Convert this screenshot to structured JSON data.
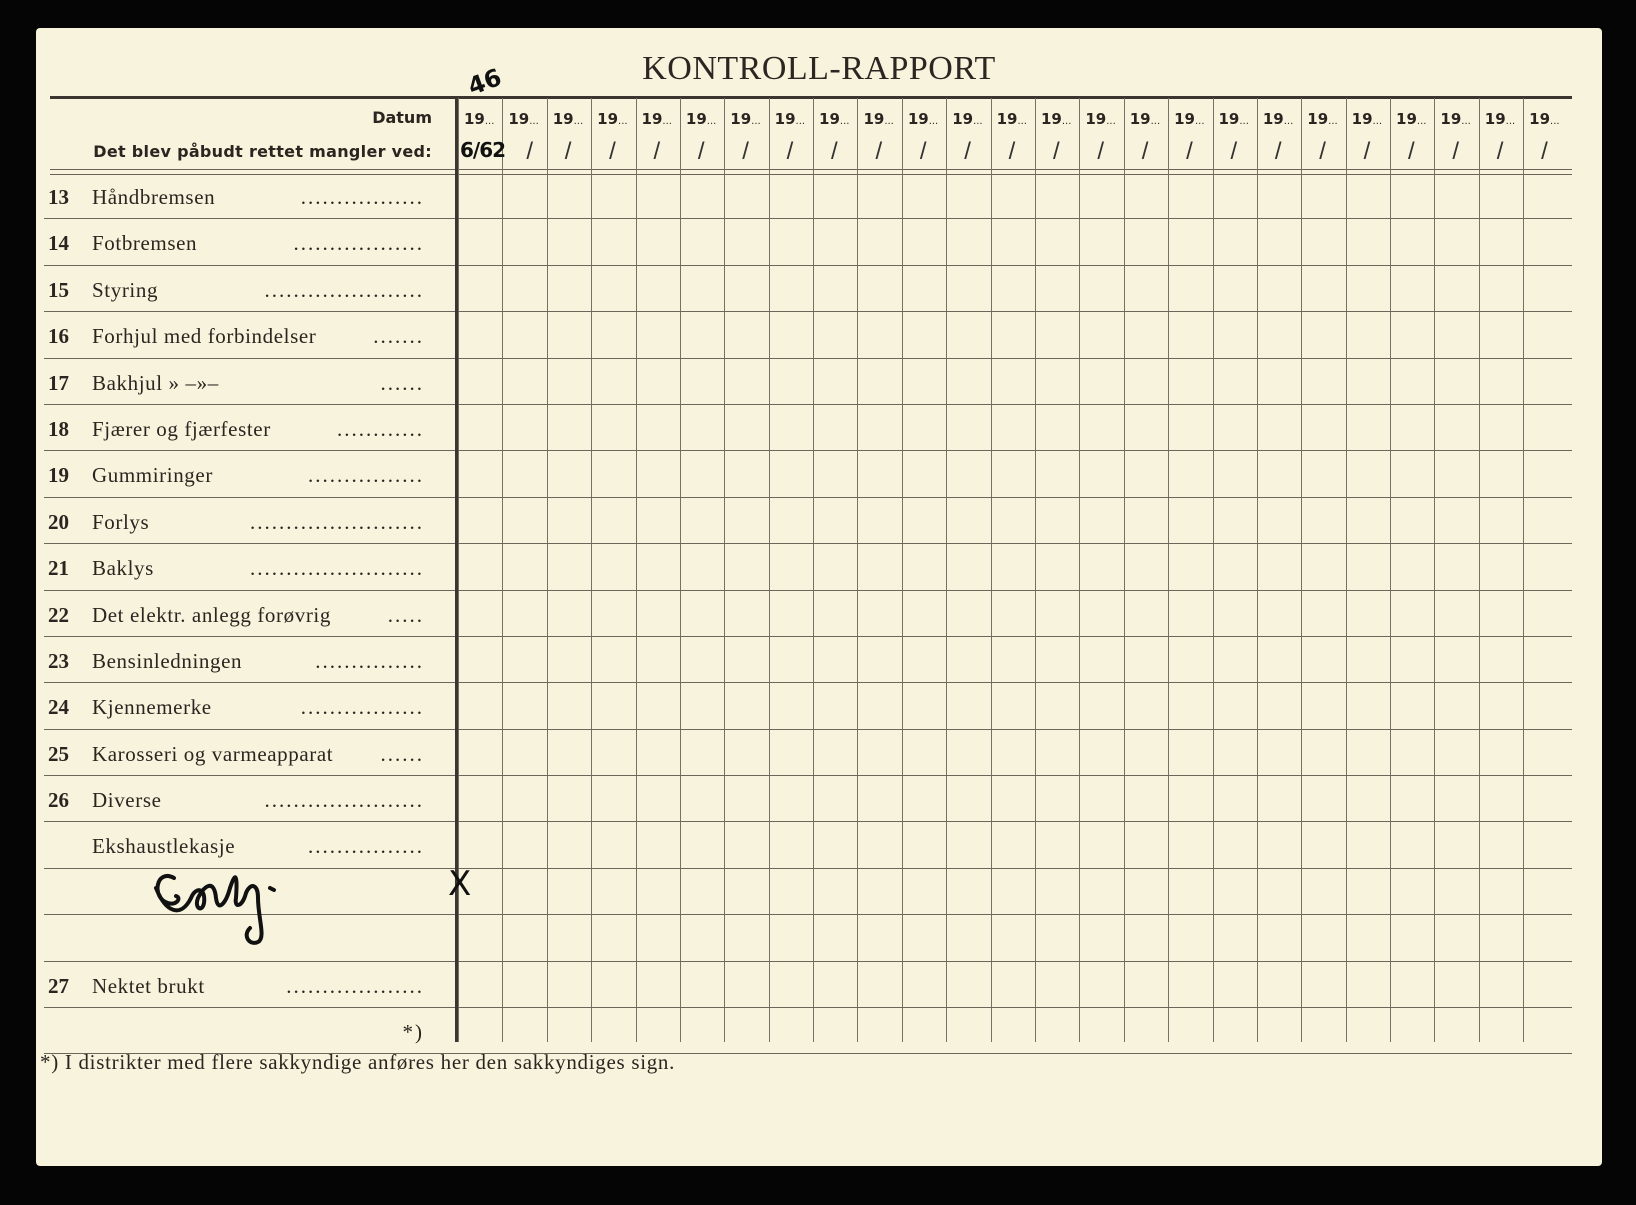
{
  "title": "KONTROLL-RAPPORT",
  "header": {
    "datum_label": "Datum",
    "mangler_label": "Det blev påbudt rettet mangler ved:",
    "year_prefix": "19",
    "column_count": 25
  },
  "rows": [
    {
      "num": "13",
      "label": "Håndbremsen",
      "dots": "................."
    },
    {
      "num": "14",
      "label": "Fotbremsen",
      "dots": ".................."
    },
    {
      "num": "15",
      "label": "Styring",
      "dots": "......................"
    },
    {
      "num": "16",
      "label": "Forhjul med forbindelser",
      "dots": "......."
    },
    {
      "num": "17",
      "label": "Bakhjul  »          –»–",
      "dots": "......"
    },
    {
      "num": "18",
      "label": "Fjærer og fjærfester",
      "dots": "............"
    },
    {
      "num": "19",
      "label": "Gummiringer",
      "dots": "................"
    },
    {
      "num": "20",
      "label": "Forlys",
      "dots": "........................"
    },
    {
      "num": "21",
      "label": "Baklys",
      "dots": "........................"
    },
    {
      "num": "22",
      "label": "Det elektr. anlegg forøvrig",
      "dots": "....."
    },
    {
      "num": "23",
      "label": "Bensinledningen",
      "dots": "..............."
    },
    {
      "num": "24",
      "label": "Kjennemerke",
      "dots": "................."
    },
    {
      "num": "25",
      "label": "Karosseri og varmeapparat",
      "dots": "......"
    },
    {
      "num": "26",
      "label": "Diverse",
      "dots": "......................"
    },
    {
      "num": "",
      "label": "Ekshaustlekasje",
      "dots": "................"
    },
    {
      "num": "",
      "label": "",
      "dots": ""
    },
    {
      "num": "",
      "label": "",
      "dots": ""
    },
    {
      "num": "27",
      "label": "Nektet brukt",
      "dots": "..................."
    },
    {
      "num": "",
      "label": "",
      "dots": "*)"
    }
  ],
  "handwritten": {
    "year": "46",
    "date": "6/62",
    "mark": "X",
    "signature": "Endy"
  },
  "footnote": "*)  I distrikter med flere sakkyndige anføres her den sakkyndiges sign."
}
